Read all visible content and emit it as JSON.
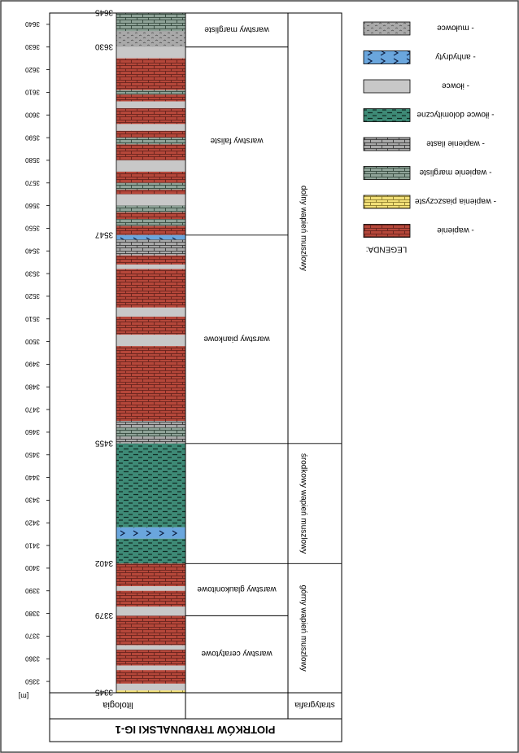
{
  "title": "PIOTRKÓW TRYBUNALSKI IG-1",
  "column_headers": {
    "lithology": "litologia",
    "stratigraphy": "stratygrafia",
    "depth_unit": "[m]"
  },
  "depth_range": {
    "top": 3645,
    "bottom": 3345
  },
  "depth_ticks": [
    3640,
    3630,
    3620,
    3610,
    3600,
    3590,
    3580,
    3570,
    3560,
    3550,
    3540,
    3530,
    3520,
    3510,
    3500,
    3490,
    3480,
    3470,
    3460,
    3450,
    3440,
    3430,
    3420,
    3410,
    3400,
    3390,
    3380,
    3370,
    3360,
    3350
  ],
  "tick_labels": [
    "3640",
    "3630",
    "3620",
    "3610",
    "3600",
    "3590",
    "3580",
    "3570",
    "3560",
    "3550",
    "3540",
    "3530",
    "3520",
    "3510",
    "3500",
    "3490",
    "3480",
    "3470",
    "3460",
    "3450",
    "3440",
    "3430",
    "3420",
    "3410",
    "3400",
    "3390",
    "3380",
    "3370",
    "3360",
    "3350"
  ],
  "boundaries": [
    {
      "depth": 3645,
      "label": "3645"
    },
    {
      "depth": 3630,
      "label": "3630"
    },
    {
      "depth": 3547,
      "label": "3547"
    },
    {
      "depth": 3455,
      "label": "3455"
    },
    {
      "depth": 3402,
      "label": "3402"
    },
    {
      "depth": 3379,
      "label": "3379"
    },
    {
      "depth": 3345,
      "label": "3345"
    }
  ],
  "subunits": [
    {
      "top": 3645,
      "bottom": 3630,
      "label": "warstwy margliste"
    },
    {
      "top": 3630,
      "bottom": 3547,
      "label": "warstwy faliste"
    },
    {
      "top": 3547,
      "bottom": 3455,
      "label": "warstwy piankowe"
    },
    {
      "top": 3455,
      "bottom": 3402,
      "label": ""
    },
    {
      "top": 3402,
      "bottom": 3379,
      "label": "warstwy glaukonitowe"
    },
    {
      "top": 3379,
      "bottom": 3345,
      "label": "warstwy ceratytowe"
    }
  ],
  "units": [
    {
      "top": 3645,
      "bottom": 3455,
      "label": "dolny wapień muszlowy"
    },
    {
      "top": 3455,
      "bottom": 3402,
      "label": "środkowy wapień muszlowy"
    },
    {
      "top": 3402,
      "bottom": 3345,
      "label": "górny wapień muszlowy"
    }
  ],
  "lithology_layers": [
    {
      "top": 3645,
      "bottom": 3637,
      "type": "marly_ls"
    },
    {
      "top": 3637,
      "bottom": 3630,
      "type": "mulowce"
    },
    {
      "top": 3630,
      "bottom": 3625,
      "type": "ilowce"
    },
    {
      "top": 3625,
      "bottom": 3611,
      "type": "wapienie"
    },
    {
      "top": 3611,
      "bottom": 3609,
      "type": "marly_ls"
    },
    {
      "top": 3609,
      "bottom": 3606,
      "type": "wapienie"
    },
    {
      "top": 3606,
      "bottom": 3603,
      "type": "ilowce"
    },
    {
      "top": 3603,
      "bottom": 3596,
      "type": "wapienie"
    },
    {
      "top": 3596,
      "bottom": 3593,
      "type": "ilowce"
    },
    {
      "top": 3593,
      "bottom": 3590,
      "type": "wapienie"
    },
    {
      "top": 3590,
      "bottom": 3587,
      "type": "marly_ls"
    },
    {
      "top": 3587,
      "bottom": 3580,
      "type": "wapienie"
    },
    {
      "top": 3580,
      "bottom": 3575,
      "type": "ilowce"
    },
    {
      "top": 3575,
      "bottom": 3570,
      "type": "wapienie"
    },
    {
      "top": 3570,
      "bottom": 3567,
      "type": "marly_ls"
    },
    {
      "top": 3567,
      "bottom": 3565,
      "type": "wapienie"
    },
    {
      "top": 3565,
      "bottom": 3560,
      "type": "ilowce"
    },
    {
      "top": 3560,
      "bottom": 3557,
      "type": "marly_ls"
    },
    {
      "top": 3557,
      "bottom": 3554,
      "type": "wapienie"
    },
    {
      "top": 3554,
      "bottom": 3551,
      "type": "marly_ls"
    },
    {
      "top": 3551,
      "bottom": 3547,
      "type": "wapienie"
    },
    {
      "top": 3547,
      "bottom": 3545,
      "type": "anhydryty"
    },
    {
      "top": 3545,
      "bottom": 3538,
      "type": "clayey_ls"
    },
    {
      "top": 3538,
      "bottom": 3534,
      "type": "wapienie"
    },
    {
      "top": 3534,
      "bottom": 3532,
      "type": "ilowce"
    },
    {
      "top": 3532,
      "bottom": 3515,
      "type": "wapienie"
    },
    {
      "top": 3515,
      "bottom": 3511,
      "type": "ilowce"
    },
    {
      "top": 3511,
      "bottom": 3503,
      "type": "wapienie"
    },
    {
      "top": 3503,
      "bottom": 3498,
      "type": "ilowce"
    },
    {
      "top": 3498,
      "bottom": 3465,
      "type": "wapienie"
    },
    {
      "top": 3465,
      "bottom": 3462,
      "type": "clayey_ls"
    },
    {
      "top": 3462,
      "bottom": 3458,
      "type": "marly_ls"
    },
    {
      "top": 3458,
      "bottom": 3455,
      "type": "clayey_ls"
    },
    {
      "top": 3455,
      "bottom": 3418,
      "type": "dolomitic"
    },
    {
      "top": 3418,
      "bottom": 3413,
      "type": "anhydryty"
    },
    {
      "top": 3413,
      "bottom": 3402,
      "type": "dolomitic"
    },
    {
      "top": 3402,
      "bottom": 3392,
      "type": "wapienie"
    },
    {
      "top": 3392,
      "bottom": 3390,
      "type": "ilowce"
    },
    {
      "top": 3390,
      "bottom": 3383,
      "type": "wapienie"
    },
    {
      "top": 3383,
      "bottom": 3379,
      "type": "ilowce"
    },
    {
      "top": 3379,
      "bottom": 3366,
      "type": "wapienie"
    },
    {
      "top": 3366,
      "bottom": 3364,
      "type": "ilowce"
    },
    {
      "top": 3364,
      "bottom": 3357,
      "type": "wapienie"
    },
    {
      "top": 3357,
      "bottom": 3355,
      "type": "ilowce"
    },
    {
      "top": 3355,
      "bottom": 3349,
      "type": "wapienie"
    },
    {
      "top": 3349,
      "bottom": 3346,
      "type": "ilowce"
    },
    {
      "top": 3346,
      "bottom": 3345,
      "type": "sandy_ls"
    }
  ],
  "legend": {
    "heading": "LEGENDA:",
    "items": [
      {
        "type": "mulowce",
        "label": "- mułowce"
      },
      {
        "type": "anhydryty",
        "label": "- anhydryty"
      },
      {
        "type": "ilowce",
        "label": "- iłowce"
      },
      {
        "type": "dolomitic",
        "label": "- iłowce dolomityczne"
      },
      {
        "type": "clayey_ls",
        "label": "- wapienie ilaste"
      },
      {
        "type": "marly_ls",
        "label": "- wapienie margliste"
      },
      {
        "type": "sandy_ls",
        "label": "- wapienia piaszczyste"
      },
      {
        "type": "wapienie",
        "label": "- wapienie"
      }
    ]
  },
  "colors": {
    "wapienie": "#b5473a",
    "ilowce": "#c8c8c8",
    "dolomitic": "#3e8a76",
    "clayey_ls": "#a9a9a9",
    "marly_ls": "#8fa398",
    "sandy_ls": "#f2e078",
    "anhydryty": "#6aa6dd",
    "mulowce": "#a9a9a9"
  }
}
